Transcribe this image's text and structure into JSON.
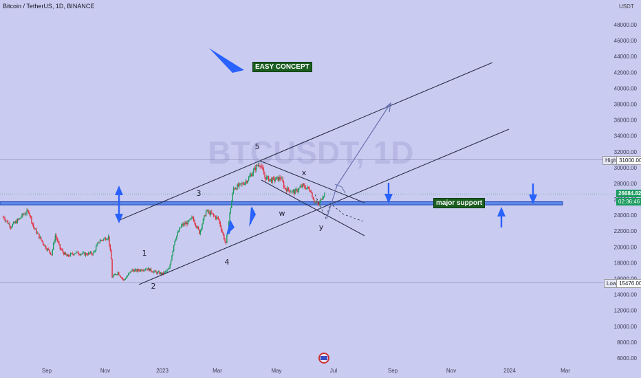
{
  "header": {
    "symbol": "Bitcoin / TetherUS, 1D, BINANCE"
  },
  "axis": {
    "unit": "USDT"
  },
  "watermark": "BTCUSDT, 1D",
  "colors": {
    "background": "#cacbf0",
    "up": "#1a9b5e",
    "down": "#e0303e",
    "band": "#5b86e6",
    "arrow": "#2962ff",
    "label_bg": "#1b5e20",
    "line": "#2a2e48"
  },
  "annotations": {
    "easy_concept": "EASY CONCEPT",
    "major_support": "major support",
    "waves": [
      "1",
      "2",
      "3",
      "4",
      "5",
      "w",
      "x",
      "y"
    ]
  },
  "tags": {
    "high_label": "High",
    "high_value": "31000.00",
    "low_label": "Low",
    "low_value": "15476.00",
    "current_price": "26684.82",
    "countdown": "02:36:46"
  },
  "chart_data": {
    "type": "candlestick",
    "title": "",
    "x_ticks": [
      "Sep",
      "Nov",
      "2023",
      "Mar",
      "May",
      "Jul",
      "Sep",
      "Nov",
      "2024",
      "Mar"
    ],
    "y_ticks": [
      6000,
      8000,
      10000,
      12000,
      14000,
      16000,
      18000,
      20000,
      22000,
      24000,
      26000,
      28000,
      30000,
      32000,
      34000,
      36000,
      38000,
      40000,
      42000,
      44000,
      46000,
      48000
    ],
    "ylim": [
      5200,
      49500
    ],
    "horizontal_levels": {
      "high": 31000,
      "low": 15476,
      "current": 26684.82
    },
    "support_zone": [
      25300,
      25700
    ],
    "close_path": [
      [
        "Jul 17",
        23800
      ],
      [
        "Jul 25",
        22600
      ],
      [
        "Aug 01",
        23300
      ],
      [
        "Aug 08",
        24200
      ],
      [
        "Aug 13",
        24500
      ],
      [
        "Aug 18",
        22500
      ],
      [
        "Aug 23",
        21500
      ],
      [
        "Aug 30",
        20100
      ],
      [
        "Sep 06",
        19100
      ],
      [
        "Sep 10",
        21500
      ],
      [
        "Sep 15",
        19800
      ],
      [
        "Sep 22",
        18800
      ],
      [
        "Oct 01",
        19300
      ],
      [
        "Oct 10",
        19100
      ],
      [
        "Oct 20",
        19200
      ],
      [
        "Oct 26",
        20700
      ],
      [
        "Nov 05",
        21300
      ],
      [
        "Nov 08",
        18400
      ],
      [
        "Nov 09",
        16200
      ],
      [
        "Nov 15",
        16800
      ],
      [
        "Nov 21",
        15800
      ],
      [
        "Nov 30",
        17100
      ],
      [
        "Dec 05",
        17000
      ],
      [
        "Dec 15",
        17300
      ],
      [
        "Dec 25",
        16800
      ],
      [
        "Jan 01",
        16600
      ],
      [
        "Jan 08",
        17200
      ],
      [
        "Jan 14",
        20900
      ],
      [
        "Jan 21",
        22700
      ],
      [
        "Jan 28",
        23100
      ],
      [
        "Feb 02",
        23700
      ],
      [
        "Feb 09",
        21800
      ],
      [
        "Feb 16",
        24500
      ],
      [
        "Feb 21",
        24200
      ],
      [
        "Mar 01",
        23500
      ],
      [
        "Mar 09",
        20300
      ],
      [
        "Mar 13",
        24200
      ],
      [
        "Mar 17",
        27400
      ],
      [
        "Mar 25",
        27800
      ],
      [
        "Apr 01",
        28500
      ],
      [
        "Apr 11",
        30300
      ],
      [
        "Apr 14",
        30500
      ],
      [
        "Apr 19",
        28800
      ],
      [
        "Apr 26",
        28400
      ],
      [
        "May 06",
        28700
      ],
      [
        "May 10",
        27400
      ],
      [
        "May 20",
        26900
      ],
      [
        "May 29",
        27700
      ],
      [
        "Jun 06",
        27200
      ],
      [
        "Jun 10",
        25800
      ],
      [
        "Jun 15",
        25300
      ],
      [
        "Jun 19",
        26500
      ],
      [
        "Jun 21",
        26700
      ]
    ]
  }
}
